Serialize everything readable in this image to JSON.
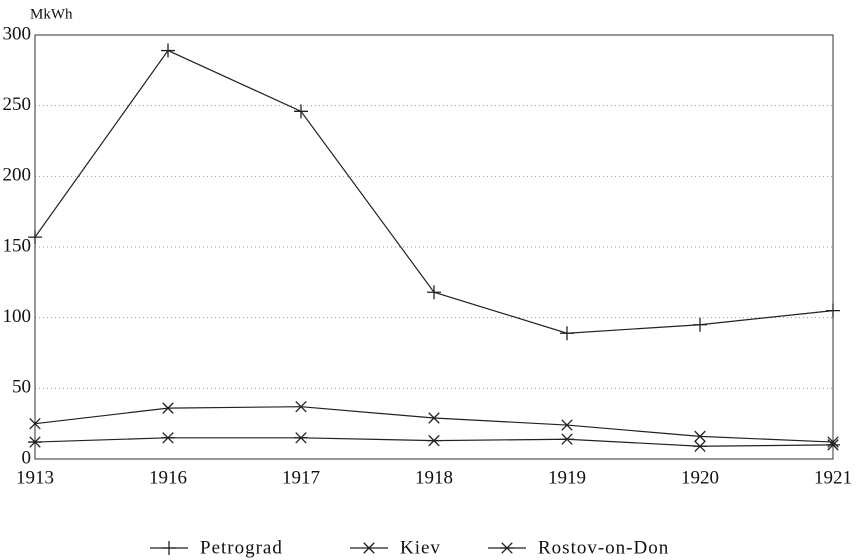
{
  "chart_data": {
    "type": "line",
    "y_axis_label": "MkWh",
    "categories": [
      "1913",
      "1916",
      "1917",
      "1918",
      "1919",
      "1920",
      "1921"
    ],
    "series": [
      {
        "name": "Petrograd",
        "color": "#222222",
        "marker": "plus",
        "values": [
          157,
          289,
          246,
          118,
          89,
          95,
          105
        ]
      },
      {
        "name": "Kiev",
        "color": "#222222",
        "marker": "x",
        "values": [
          25,
          36,
          37,
          29,
          24,
          16,
          12
        ]
      },
      {
        "name": "Rostov-on-Don",
        "color": "#222222",
        "marker": "asterisk",
        "values": [
          12,
          15,
          15,
          13,
          14,
          9,
          10
        ]
      }
    ],
    "ylim": [
      0,
      300
    ],
    "yticks": [
      0,
      50,
      100,
      150,
      200,
      250,
      300
    ],
    "grid": true,
    "legend": "bottom"
  }
}
